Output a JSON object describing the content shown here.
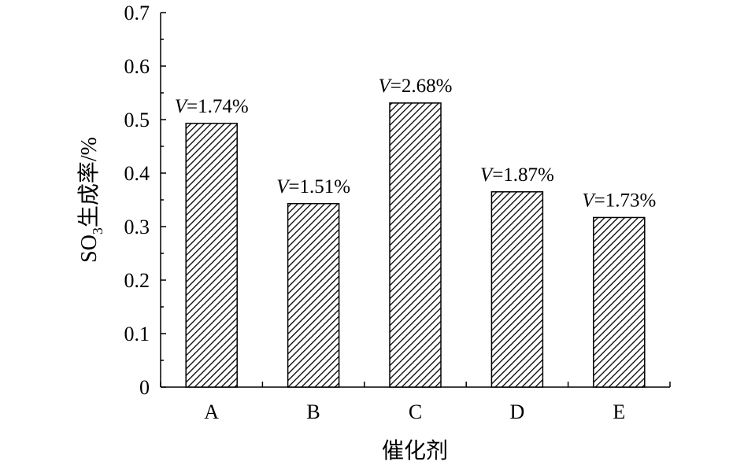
{
  "chart_data": {
    "type": "bar",
    "categories": [
      "A",
      "B",
      "C",
      "D",
      "E"
    ],
    "values": [
      0.493,
      0.343,
      0.531,
      0.365,
      0.317
    ],
    "data_labels": [
      "1.74%",
      "1.51%",
      "2.68%",
      "1.87%",
      "1.73%"
    ],
    "data_label_prefix": "V=",
    "xlabel": "催化剂",
    "ylabel_main": "SO",
    "ylabel_sub": "3",
    "ylabel_rest": "生成率/%",
    "ylim": [
      0,
      0.7
    ],
    "yticks": [
      "0",
      "0.1",
      "0.2",
      "0.3",
      "0.4",
      "0.5",
      "0.6",
      "0.7"
    ],
    "grid": false,
    "bar_pattern": "diagonal-hatch"
  }
}
